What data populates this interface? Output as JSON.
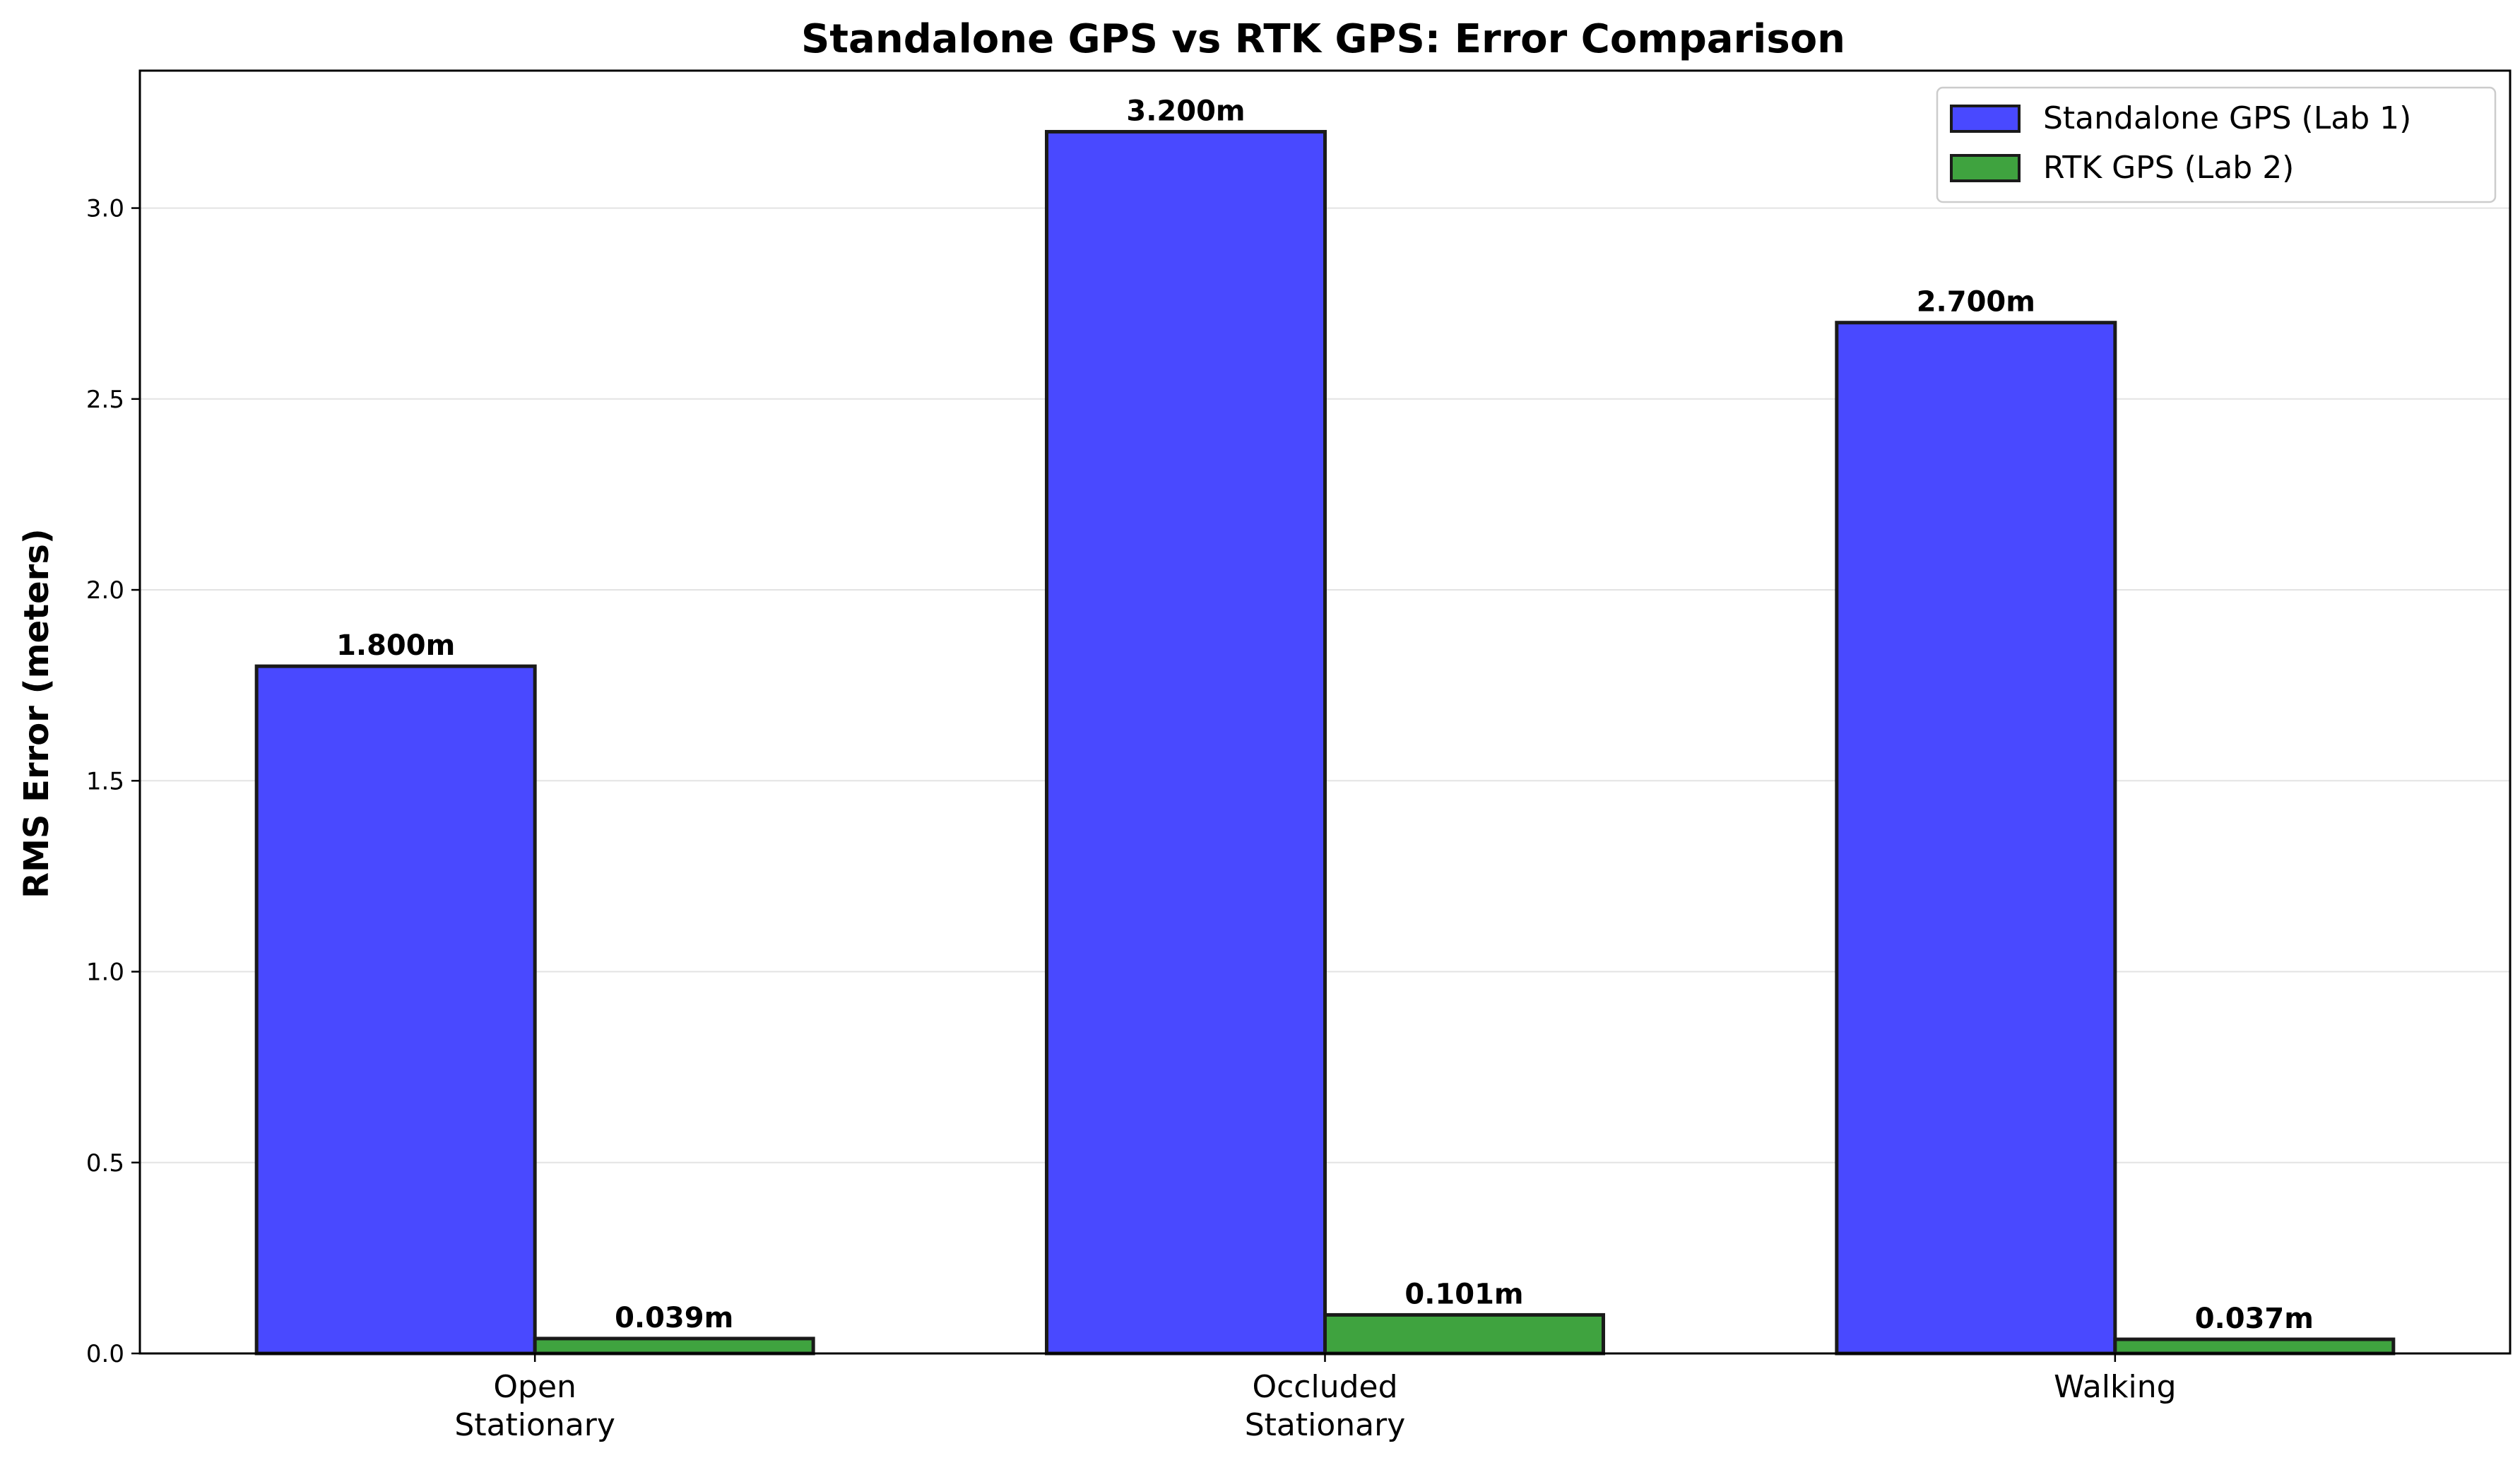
{
  "chart_data": {
    "type": "bar",
    "title": "Standalone GPS vs RTK GPS: Error Comparison",
    "xlabel": "",
    "ylabel": "RMS Error (meters)",
    "categories": [
      "Open\nStationary",
      "Occluded\nStationary",
      "Walking"
    ],
    "series": [
      {
        "name": "Standalone GPS (Lab 1)",
        "color": "#4949ff",
        "values": [
          1.8,
          3.2,
          2.7
        ],
        "labels": [
          "1.800m",
          "3.200m",
          "2.700m"
        ]
      },
      {
        "name": "RTK GPS (Lab 2)",
        "color": "#3fa33f",
        "values": [
          0.039,
          0.101,
          0.037
        ],
        "labels": [
          "0.039m",
          "0.101m",
          "0.037m"
        ]
      }
    ],
    "ylim": [
      0,
      3.36
    ],
    "yticks": [
      0.0,
      0.5,
      1.0,
      1.5,
      2.0,
      2.5,
      3.0
    ],
    "ytick_labels": [
      "0.0",
      "0.5",
      "1.0",
      "1.5",
      "2.0",
      "2.5",
      "3.0"
    ],
    "grid": "y",
    "legend_position": "top-right"
  }
}
